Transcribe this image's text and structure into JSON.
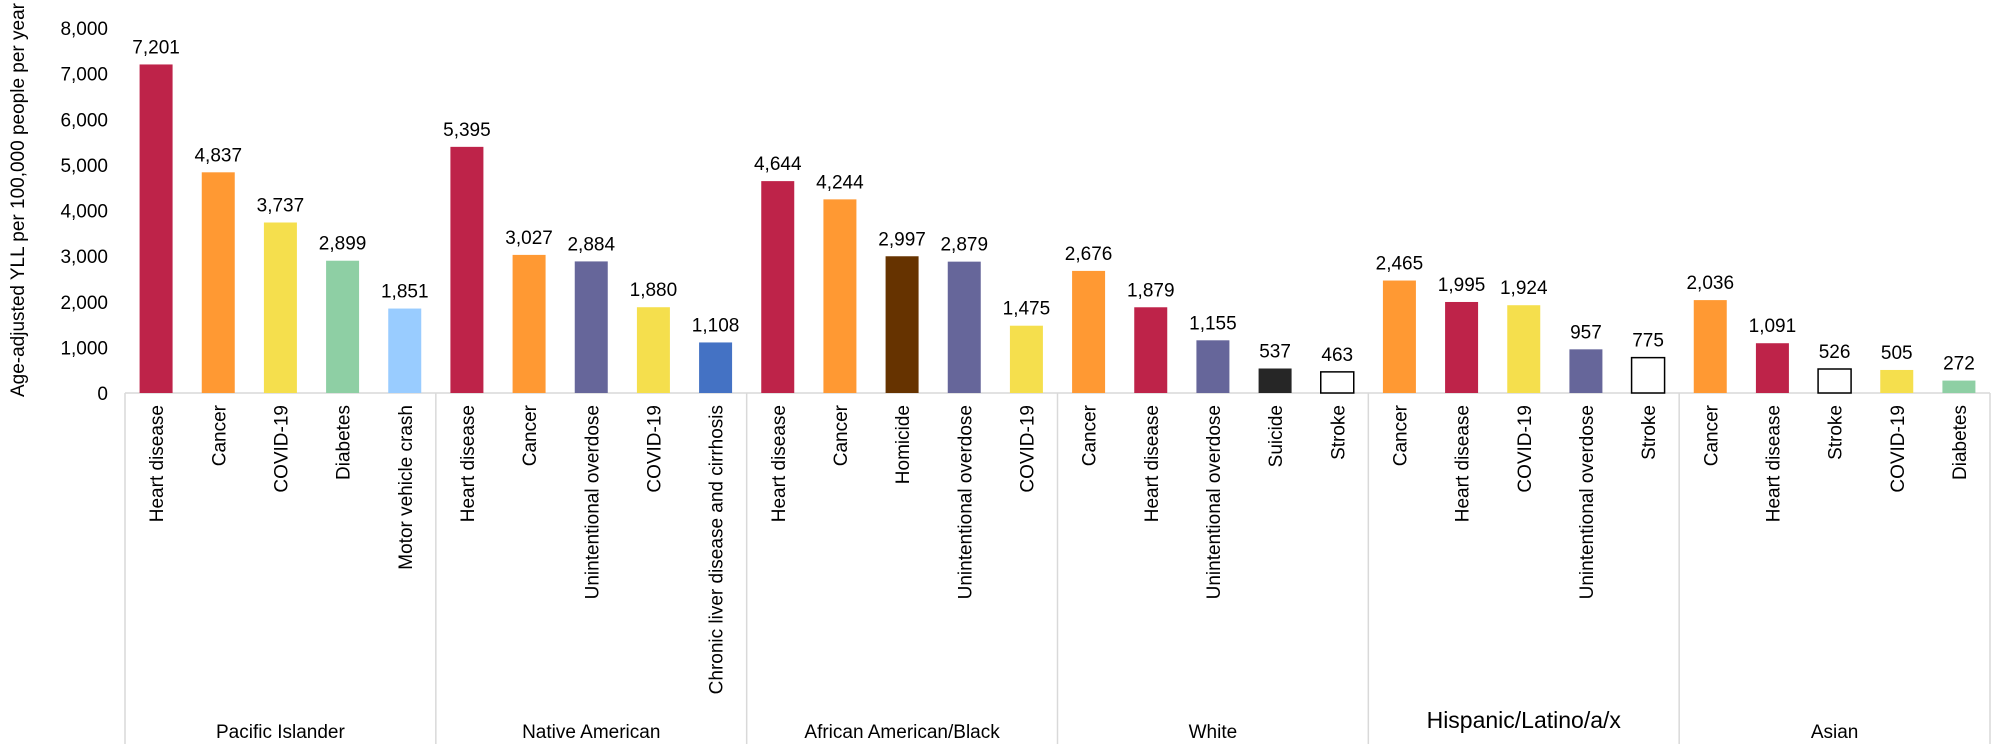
{
  "chart_data": {
    "type": "bar",
    "title": "",
    "ylabel": "Age-adjusted YLL per 100,000 people per year",
    "xlabel": "",
    "ylim": [
      0,
      8000
    ],
    "yticks": [
      0,
      1000,
      2000,
      3000,
      4000,
      5000,
      6000,
      7000,
      8000
    ],
    "ytick_labels": [
      "0",
      "1,000",
      "2,000",
      "3,000",
      "4,000",
      "5,000",
      "6,000",
      "7,000",
      "8,000"
    ],
    "grid": false,
    "legend": "none",
    "groups": [
      {
        "name": "Pacific Islander",
        "bars": [
          {
            "label": "Heart disease",
            "value": 7201,
            "value_label": "7,201",
            "color": "#be2349"
          },
          {
            "label": "Cancer",
            "value": 4837,
            "value_label": "4,837",
            "color": "#ff9933"
          },
          {
            "label": "COVID-19",
            "value": 3737,
            "value_label": "3,737",
            "color": "#f5df4d"
          },
          {
            "label": "Diabetes",
            "value": 2899,
            "value_label": "2,899",
            "color": "#8ecfa4"
          },
          {
            "label": "Motor vehicle crash",
            "value": 1851,
            "value_label": "1,851",
            "color": "#99ccff"
          }
        ]
      },
      {
        "name": "Native American",
        "bars": [
          {
            "label": "Heart disease",
            "value": 5395,
            "value_label": "5,395",
            "color": "#be2349"
          },
          {
            "label": "Cancer",
            "value": 3027,
            "value_label": "3,027",
            "color": "#ff9933"
          },
          {
            "label": "Unintentional overdose",
            "value": 2884,
            "value_label": "2,884",
            "color": "#66669a"
          },
          {
            "label": "COVID-19",
            "value": 1880,
            "value_label": "1,880",
            "color": "#f5df4d"
          },
          {
            "label": "Chronic liver disease and cirrhosis",
            "value": 1108,
            "value_label": "1,108",
            "color": "#4472c4"
          }
        ]
      },
      {
        "name": "African American/Black",
        "bars": [
          {
            "label": "Heart disease",
            "value": 4644,
            "value_label": "4,644",
            "color": "#be2349"
          },
          {
            "label": "Cancer",
            "value": 4244,
            "value_label": "4,244",
            "color": "#ff9933"
          },
          {
            "label": "Homicide",
            "value": 2997,
            "value_label": "2,997",
            "color": "#663300"
          },
          {
            "label": "Unintentional overdose",
            "value": 2879,
            "value_label": "2,879",
            "color": "#66669a"
          },
          {
            "label": "COVID-19",
            "value": 1475,
            "value_label": "1,475",
            "color": "#f5df4d"
          }
        ]
      },
      {
        "name": "White",
        "bars": [
          {
            "label": "Cancer",
            "value": 2676,
            "value_label": "2,676",
            "color": "#ff9933"
          },
          {
            "label": "Heart disease",
            "value": 1879,
            "value_label": "1,879",
            "color": "#be2349"
          },
          {
            "label": "Unintentional overdose",
            "value": 1155,
            "value_label": "1,155",
            "color": "#66669a"
          },
          {
            "label": "Suicide",
            "value": 537,
            "value_label": "537",
            "color": "#262626"
          },
          {
            "label": "Stroke",
            "value": 463,
            "value_label": "463",
            "color": "#ffffff"
          }
        ]
      },
      {
        "name": "Hispanic/Latino/a/x",
        "bars": [
          {
            "label": "Cancer",
            "value": 2465,
            "value_label": "2,465",
            "color": "#ff9933"
          },
          {
            "label": "Heart disease",
            "value": 1995,
            "value_label": "1,995",
            "color": "#be2349"
          },
          {
            "label": "COVID-19",
            "value": 1924,
            "value_label": "1,924",
            "color": "#f5df4d"
          },
          {
            "label": "Unintentional overdose",
            "value": 957,
            "value_label": "957",
            "color": "#66669a"
          },
          {
            "label": "Stroke",
            "value": 775,
            "value_label": "775",
            "color": "#ffffff"
          }
        ]
      },
      {
        "name": "Asian",
        "bars": [
          {
            "label": "Cancer",
            "value": 2036,
            "value_label": "2,036",
            "color": "#ff9933"
          },
          {
            "label": "Heart disease",
            "value": 1091,
            "value_label": "1,091",
            "color": "#be2349"
          },
          {
            "label": "Stroke",
            "value": 526,
            "value_label": "526",
            "color": "#ffffff"
          },
          {
            "label": "COVID-19",
            "value": 505,
            "value_label": "505",
            "color": "#f5df4d"
          },
          {
            "label": "Diabetes",
            "value": 272,
            "value_label": "272",
            "color": "#8ecfa4"
          }
        ]
      }
    ]
  }
}
